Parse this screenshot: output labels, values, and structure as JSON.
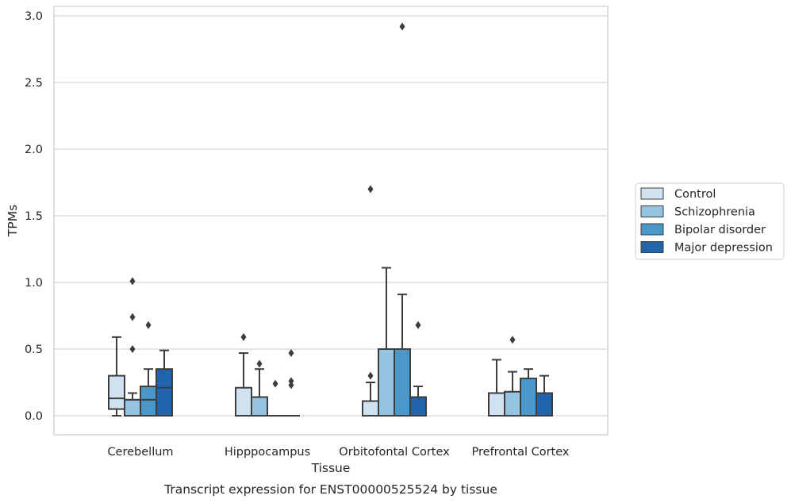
{
  "chart_data": {
    "type": "box",
    "caption": "Transcript expression for ENST00000525524 by tissue",
    "xlabel": "Tissue",
    "ylabel": "TPMs",
    "ylim": [
      -0.14,
      3.07
    ],
    "yticks": [
      "0.0",
      "0.5",
      "1.0",
      "1.5",
      "2.0",
      "2.5",
      "3.0"
    ],
    "grid": "horizontal",
    "legend_position": "right",
    "categories": [
      "Cerebellum",
      "Hipppocampus",
      "Orbitofontal Cortex",
      "Prefrontal Cortex"
    ],
    "series": [
      {
        "name": "Control",
        "color": "#d0e1f2",
        "boxes": [
          {
            "q1": 0.05,
            "median": 0.13,
            "q3": 0.3,
            "whislo": 0.0,
            "whishi": 0.59,
            "fliers": []
          },
          {
            "q1": 0.0,
            "median": 0.0,
            "q3": 0.21,
            "whislo": 0.0,
            "whishi": 0.47,
            "fliers": [
              0.59
            ]
          },
          {
            "q1": 0.0,
            "median": 0.0,
            "q3": 0.11,
            "whislo": 0.0,
            "whishi": 0.25,
            "fliers": [
              0.3,
              1.7
            ]
          },
          {
            "q1": 0.0,
            "median": 0.0,
            "q3": 0.17,
            "whislo": 0.0,
            "whishi": 0.42,
            "fliers": []
          }
        ]
      },
      {
        "name": "Schizophrenia",
        "color": "#94c4df",
        "boxes": [
          {
            "q1": 0.0,
            "median": 0.12,
            "q3": 0.12,
            "whislo": 0.0,
            "whishi": 0.17,
            "fliers": [
              0.5,
              0.74,
              1.01
            ]
          },
          {
            "q1": 0.0,
            "median": 0.0,
            "q3": 0.14,
            "whislo": 0.0,
            "whishi": 0.35,
            "fliers": [
              0.39
            ]
          },
          {
            "q1": 0.0,
            "median": 0.5,
            "q3": 0.5,
            "whislo": 0.0,
            "whishi": 1.11,
            "fliers": []
          },
          {
            "q1": 0.0,
            "median": 0.0,
            "q3": 0.18,
            "whislo": 0.0,
            "whishi": 0.33,
            "fliers": [
              0.57
            ]
          }
        ]
      },
      {
        "name": "Bipolar disorder",
        "color": "#4a98c9",
        "boxes": [
          {
            "q1": 0.0,
            "median": 0.12,
            "q3": 0.22,
            "whislo": 0.0,
            "whishi": 0.35,
            "fliers": [
              0.68
            ]
          },
          {
            "q1": 0.0,
            "median": 0.0,
            "q3": 0.0,
            "whislo": 0.0,
            "whishi": 0.0,
            "fliers": [
              0.24
            ]
          },
          {
            "q1": 0.0,
            "median": 0.5,
            "q3": 0.5,
            "whislo": 0.0,
            "whishi": 0.91,
            "fliers": [
              2.92
            ]
          },
          {
            "q1": 0.0,
            "median": 0.0,
            "q3": 0.28,
            "whislo": 0.0,
            "whishi": 0.35,
            "fliers": []
          }
        ]
      },
      {
        "name": "Major depression",
        "color": "#2164ab",
        "boxes": [
          {
            "q1": 0.0,
            "median": 0.21,
            "q3": 0.35,
            "whislo": 0.0,
            "whishi": 0.49,
            "fliers": []
          },
          {
            "q1": 0.0,
            "median": 0.0,
            "q3": 0.0,
            "whislo": 0.0,
            "whishi": 0.0,
            "fliers": [
              0.23,
              0.26,
              0.47
            ]
          },
          {
            "q1": 0.0,
            "median": 0.0,
            "q3": 0.14,
            "whislo": 0.0,
            "whishi": 0.22,
            "fliers": [
              0.68
            ]
          },
          {
            "q1": 0.0,
            "median": 0.0,
            "q3": 0.17,
            "whislo": 0.0,
            "whishi": 0.3,
            "fliers": []
          }
        ]
      }
    ]
  }
}
